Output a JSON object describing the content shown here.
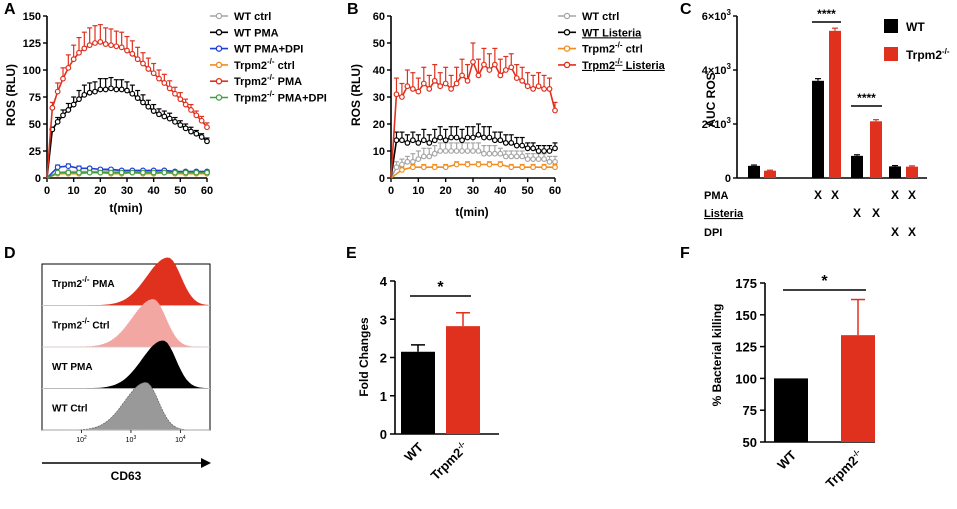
{
  "panel_labels": {
    "A": "A",
    "B": "B",
    "C": "C",
    "D": "D",
    "E": "E",
    "F": "F"
  },
  "colors": {
    "wt_ctrl": "#a6a6a6",
    "wt_pma": "#000000",
    "wt_dpi": "#1f3fd6",
    "trpm2_ctrl": "#f28c1e",
    "trpm2_pma": "#e0301e",
    "trpm2_dpi": "#3f9f3f",
    "red": "#e0301e",
    "black": "#000000",
    "pink": "#f3a7a2",
    "gray": "#999999"
  },
  "chart_data": [
    {
      "id": "A",
      "type": "line",
      "title": "",
      "xlabel": "t(min)",
      "ylabel": "ROS (RLU)",
      "xlim": [
        0,
        60
      ],
      "ylim": [
        0,
        150
      ],
      "xticks": [
        0,
        10,
        20,
        30,
        40,
        50,
        60
      ],
      "yticks": [
        0,
        25,
        50,
        75,
        100,
        125,
        150
      ],
      "xtick_labels": [
        "0",
        "10",
        "20",
        "30",
        "40",
        "50",
        "60"
      ],
      "ytick_labels": [
        "0",
        "25",
        "50",
        "75",
        "100",
        "125",
        "150"
      ],
      "legend": [
        "WT ctrl",
        "WT PMA",
        "WT PMA+DPI",
        "Trpm2-/- ctrl",
        "Trpm2-/- PMA",
        "Trpm2-/- PMA+DPI"
      ],
      "legend_sub": "-/-",
      "series": [
        {
          "name": "WT ctrl",
          "color": "#a6a6a6",
          "x": [
            0,
            4,
            8,
            12,
            16,
            20,
            24,
            28,
            32,
            36,
            40,
            44,
            48,
            52,
            56,
            60
          ],
          "y": [
            0,
            5,
            6,
            6,
            6,
            6,
            7,
            6,
            6,
            6,
            6,
            7,
            6,
            6,
            6,
            6
          ],
          "err": [
            0,
            1,
            1,
            1,
            1,
            1,
            1,
            1,
            1,
            1,
            1,
            1,
            1,
            1,
            1,
            1
          ]
        },
        {
          "name": "WT PMA",
          "color": "#000000",
          "x": [
            0,
            2,
            4,
            6,
            8,
            10,
            12,
            14,
            16,
            18,
            20,
            22,
            24,
            26,
            28,
            30,
            32,
            34,
            36,
            38,
            40,
            42,
            44,
            46,
            48,
            50,
            52,
            54,
            56,
            58,
            60
          ],
          "y": [
            0,
            45,
            52,
            58,
            63,
            68,
            73,
            77,
            79,
            80,
            82,
            82,
            83,
            82,
            82,
            81,
            78,
            74,
            70,
            66,
            62,
            59,
            57,
            55,
            52,
            49,
            46,
            43,
            41,
            38,
            34
          ],
          "err": [
            0,
            2,
            4,
            5,
            6,
            7,
            8,
            9,
            9,
            9,
            10,
            10,
            10,
            9,
            9,
            8,
            8,
            7,
            7,
            6,
            6,
            5,
            5,
            5,
            4,
            4,
            4,
            4,
            3,
            3,
            3
          ]
        },
        {
          "name": "WT PMA+DPI",
          "color": "#1f3fd6",
          "x": [
            0,
            4,
            8,
            12,
            16,
            20,
            24,
            28,
            32,
            36,
            40,
            44,
            48,
            52,
            56,
            60
          ],
          "y": [
            0,
            10,
            11,
            9,
            9,
            8,
            8,
            7,
            7,
            7,
            7,
            7,
            6,
            6,
            6,
            6
          ],
          "err": [
            0,
            2,
            2,
            2,
            1,
            1,
            1,
            1,
            1,
            1,
            1,
            1,
            1,
            1,
            1,
            1
          ]
        },
        {
          "name": "Trpm2-/- ctrl",
          "color": "#f28c1e",
          "x": [
            0,
            4,
            8,
            12,
            16,
            20,
            24,
            28,
            32,
            36,
            40,
            44,
            48,
            52,
            56,
            60
          ],
          "y": [
            0,
            4,
            4,
            4,
            5,
            5,
            4,
            4,
            5,
            4,
            4,
            5,
            4,
            4,
            4,
            4
          ],
          "err": [
            0,
            1,
            1,
            1,
            1,
            1,
            1,
            1,
            1,
            1,
            1,
            1,
            1,
            1,
            1,
            1
          ]
        },
        {
          "name": "Trpm2-/- PMA",
          "color": "#e0301e",
          "x": [
            0,
            2,
            4,
            6,
            8,
            10,
            12,
            14,
            16,
            18,
            20,
            22,
            24,
            26,
            28,
            30,
            32,
            34,
            36,
            38,
            40,
            42,
            44,
            46,
            48,
            50,
            52,
            54,
            56,
            58,
            60
          ],
          "y": [
            0,
            65,
            80,
            92,
            102,
            110,
            116,
            120,
            123,
            125,
            126,
            124,
            123,
            122,
            121,
            118,
            115,
            110,
            106,
            101,
            97,
            92,
            88,
            83,
            78,
            73,
            68,
            63,
            58,
            53,
            47
          ],
          "err": [
            0,
            5,
            8,
            10,
            12,
            13,
            14,
            15,
            16,
            16,
            16,
            15,
            15,
            14,
            14,
            13,
            12,
            11,
            10,
            10,
            9,
            8,
            8,
            7,
            6,
            6,
            5,
            5,
            4,
            4,
            4
          ]
        },
        {
          "name": "Trpm2-/- PMA+DPI",
          "color": "#3f9f3f",
          "x": [
            0,
            4,
            8,
            12,
            16,
            20,
            24,
            28,
            32,
            36,
            40,
            44,
            48,
            52,
            56,
            60
          ],
          "y": [
            0,
            5,
            5,
            5,
            5,
            5,
            5,
            5,
            5,
            5,
            5,
            5,
            5,
            5,
            5,
            5
          ],
          "err": [
            0,
            1,
            1,
            1,
            1,
            1,
            1,
            1,
            1,
            1,
            1,
            1,
            1,
            1,
            1,
            1
          ]
        }
      ]
    },
    {
      "id": "B",
      "type": "line",
      "title": "",
      "xlabel": "t(min)",
      "ylabel": "ROS (RLU)",
      "xlim": [
        0,
        60
      ],
      "ylim": [
        0,
        60
      ],
      "xticks": [
        0,
        10,
        20,
        30,
        40,
        50,
        60
      ],
      "yticks": [
        0,
        10,
        20,
        30,
        40,
        50,
        60
      ],
      "xtick_labels": [
        "0",
        "10",
        "20",
        "30",
        "40",
        "50",
        "60"
      ],
      "ytick_labels": [
        "0",
        "10",
        "20",
        "30",
        "40",
        "50",
        "60"
      ],
      "legend": [
        "WT ctrl",
        "WT Listeria",
        "Trpm2-/- ctrl",
        "Trpm2-/- Listeria"
      ],
      "legend_sub": "-/-",
      "series": [
        {
          "name": "WT ctrl",
          "color": "#a6a6a6",
          "x": [
            0,
            2,
            4,
            6,
            8,
            10,
            12,
            14,
            16,
            18,
            20,
            22,
            24,
            26,
            28,
            30,
            32,
            34,
            36,
            38,
            40,
            42,
            44,
            46,
            48,
            50,
            52,
            54,
            56,
            58,
            60
          ],
          "y": [
            0,
            4,
            5,
            6,
            6,
            7,
            8,
            8,
            9,
            10,
            10,
            10,
            10,
            10,
            10,
            10,
            10,
            9,
            9,
            9,
            9,
            8,
            8,
            8,
            8,
            7,
            7,
            7,
            7,
            6,
            6
          ],
          "err": [
            0,
            2,
            2,
            2,
            3,
            3,
            3,
            3,
            3,
            3,
            3,
            3,
            3,
            3,
            3,
            3,
            3,
            3,
            3,
            3,
            2,
            2,
            2,
            2,
            2,
            2,
            2,
            2,
            2,
            2,
            2
          ]
        },
        {
          "name": "WT Listeria",
          "color": "#000000",
          "x": [
            0,
            2,
            4,
            6,
            8,
            10,
            12,
            14,
            16,
            18,
            20,
            22,
            24,
            26,
            28,
            30,
            32,
            34,
            36,
            38,
            40,
            42,
            44,
            46,
            48,
            50,
            52,
            54,
            56,
            58,
            60
          ],
          "y": [
            0,
            14,
            14,
            13,
            14,
            13,
            14,
            13,
            14,
            15,
            14,
            15,
            15,
            14,
            15,
            15,
            16,
            15,
            15,
            14,
            14,
            13,
            13,
            12,
            12,
            11,
            11,
            10,
            10,
            10,
            11
          ],
          "err": [
            0,
            3,
            3,
            3,
            3,
            3,
            4,
            3,
            4,
            4,
            4,
            4,
            4,
            4,
            4,
            4,
            4,
            4,
            4,
            3,
            3,
            3,
            3,
            3,
            3,
            2,
            2,
            2,
            2,
            2,
            2
          ]
        },
        {
          "name": "Trpm2-/- ctrl",
          "color": "#f28c1e",
          "x": [
            0,
            4,
            8,
            12,
            16,
            20,
            24,
            28,
            32,
            36,
            40,
            44,
            48,
            52,
            56,
            60
          ],
          "y": [
            0,
            3,
            4,
            4,
            4,
            4,
            5,
            5,
            5,
            5,
            5,
            4,
            4,
            4,
            4,
            4
          ],
          "err": [
            0,
            1,
            1,
            1,
            1,
            1,
            1,
            1,
            1,
            1,
            1,
            1,
            1,
            1,
            1,
            1
          ]
        },
        {
          "name": "Trpm2-/- Listeria",
          "color": "#e0301e",
          "x": [
            0,
            2,
            4,
            6,
            8,
            10,
            12,
            14,
            16,
            18,
            20,
            22,
            24,
            26,
            28,
            30,
            32,
            34,
            36,
            38,
            40,
            42,
            44,
            46,
            48,
            50,
            52,
            54,
            56,
            58,
            60
          ],
          "y": [
            0,
            31,
            30,
            34,
            33,
            32,
            35,
            33,
            36,
            34,
            35,
            33,
            35,
            38,
            36,
            43,
            38,
            42,
            40,
            42,
            38,
            40,
            41,
            37,
            36,
            34,
            33,
            34,
            33,
            33,
            25
          ],
          "err": [
            0,
            6,
            5,
            6,
            6,
            5,
            6,
            5,
            6,
            5,
            6,
            5,
            6,
            6,
            6,
            7,
            6,
            6,
            6,
            6,
            6,
            5,
            5,
            5,
            5,
            5,
            5,
            5,
            5,
            4,
            3
          ]
        }
      ]
    },
    {
      "id": "C",
      "type": "bar",
      "title": "",
      "xlabel": "",
      "ylabel": "AUC ROS",
      "ylim": [
        0,
        6000
      ],
      "yticks": [
        0,
        2000,
        4000,
        6000
      ],
      "ytick_labels": [
        "0",
        "2×10",
        "4×10",
        "6×10"
      ],
      "ytick_exp": "3",
      "legend": [
        "WT",
        "Trpm2-/-"
      ],
      "legend_sub": "-/-",
      "categories": [
        "ctrl",
        "PMA",
        "Listeria",
        "PMA+DPI"
      ],
      "series": [
        {
          "name": "WT",
          "color": "#000000",
          "values": [
            450,
            3600,
            820,
            430
          ],
          "err": [
            30,
            80,
            40,
            30
          ]
        },
        {
          "name": "Trpm2-/-",
          "color": "#e0301e",
          "values": [
            270,
            5450,
            2100,
            420
          ],
          "err": [
            20,
            100,
            60,
            30
          ]
        }
      ],
      "significance": [
        {
          "group": "PMA",
          "label": "****"
        },
        {
          "group": "Listeria",
          "label": "****"
        }
      ],
      "row_labels": [
        "PMA",
        "Listeria",
        "DPI"
      ],
      "row_marks": [
        [
          "",
          "",
          "X",
          "X",
          "",
          "",
          "X",
          "X"
        ],
        [
          "",
          "",
          "",
          "",
          "X",
          "X",
          "",
          ""
        ],
        [
          "",
          "",
          "",
          "",
          "",
          "",
          "X",
          "X"
        ]
      ],
      "mark": "X"
    },
    {
      "id": "D",
      "type": "histogram",
      "title": "",
      "xlabel": "CD63",
      "xtick_labels": [
        "10",
        "10",
        "10"
      ],
      "xtick_exp": [
        "2",
        "3",
        "4"
      ],
      "tracks": [
        {
          "name": "Trpm2-/- PMA",
          "label": "Trpm2-/- PMA",
          "color": "#e0301e",
          "peak_log": 3.75
        },
        {
          "name": "Trpm2-/- Ctrl",
          "label": "Trpm2-/- Ctrl",
          "color": "#f3a7a2",
          "peak_log": 3.45
        },
        {
          "name": "WT PMA",
          "label": "WT PMA",
          "color": "#000000",
          "peak_log": 3.65
        },
        {
          "name": "WT Ctrl",
          "label": "WT Ctrl",
          "color": "#999999",
          "peak_log": 3.3
        }
      ]
    },
    {
      "id": "E",
      "type": "bar",
      "title": "",
      "xlabel": "",
      "ylabel": "Fold Changes",
      "ylim": [
        0,
        4
      ],
      "yticks": [
        0,
        1,
        2,
        3,
        4
      ],
      "ytick_labels": [
        "0",
        "1",
        "2",
        "3",
        "4"
      ],
      "categories": [
        "WT",
        "Trpm2-/-"
      ],
      "values": [
        2.15,
        2.82
      ],
      "err": [
        0.18,
        0.35
      ],
      "colors": [
        "#000000",
        "#e0301e"
      ],
      "significance": "*"
    },
    {
      "id": "F",
      "type": "bar",
      "title": "",
      "xlabel": "",
      "ylabel": "% Bacterial killing",
      "ylim": [
        50,
        175
      ],
      "yticks": [
        50,
        75,
        100,
        125,
        150,
        175
      ],
      "ytick_labels": [
        "50",
        "75",
        "100",
        "125",
        "150",
        "175"
      ],
      "categories": [
        "WT",
        "Trpm2-/-"
      ],
      "values": [
        100,
        134
      ],
      "err": [
        0,
        28
      ],
      "colors": [
        "#000000",
        "#e0301e"
      ],
      "significance": "*"
    }
  ]
}
